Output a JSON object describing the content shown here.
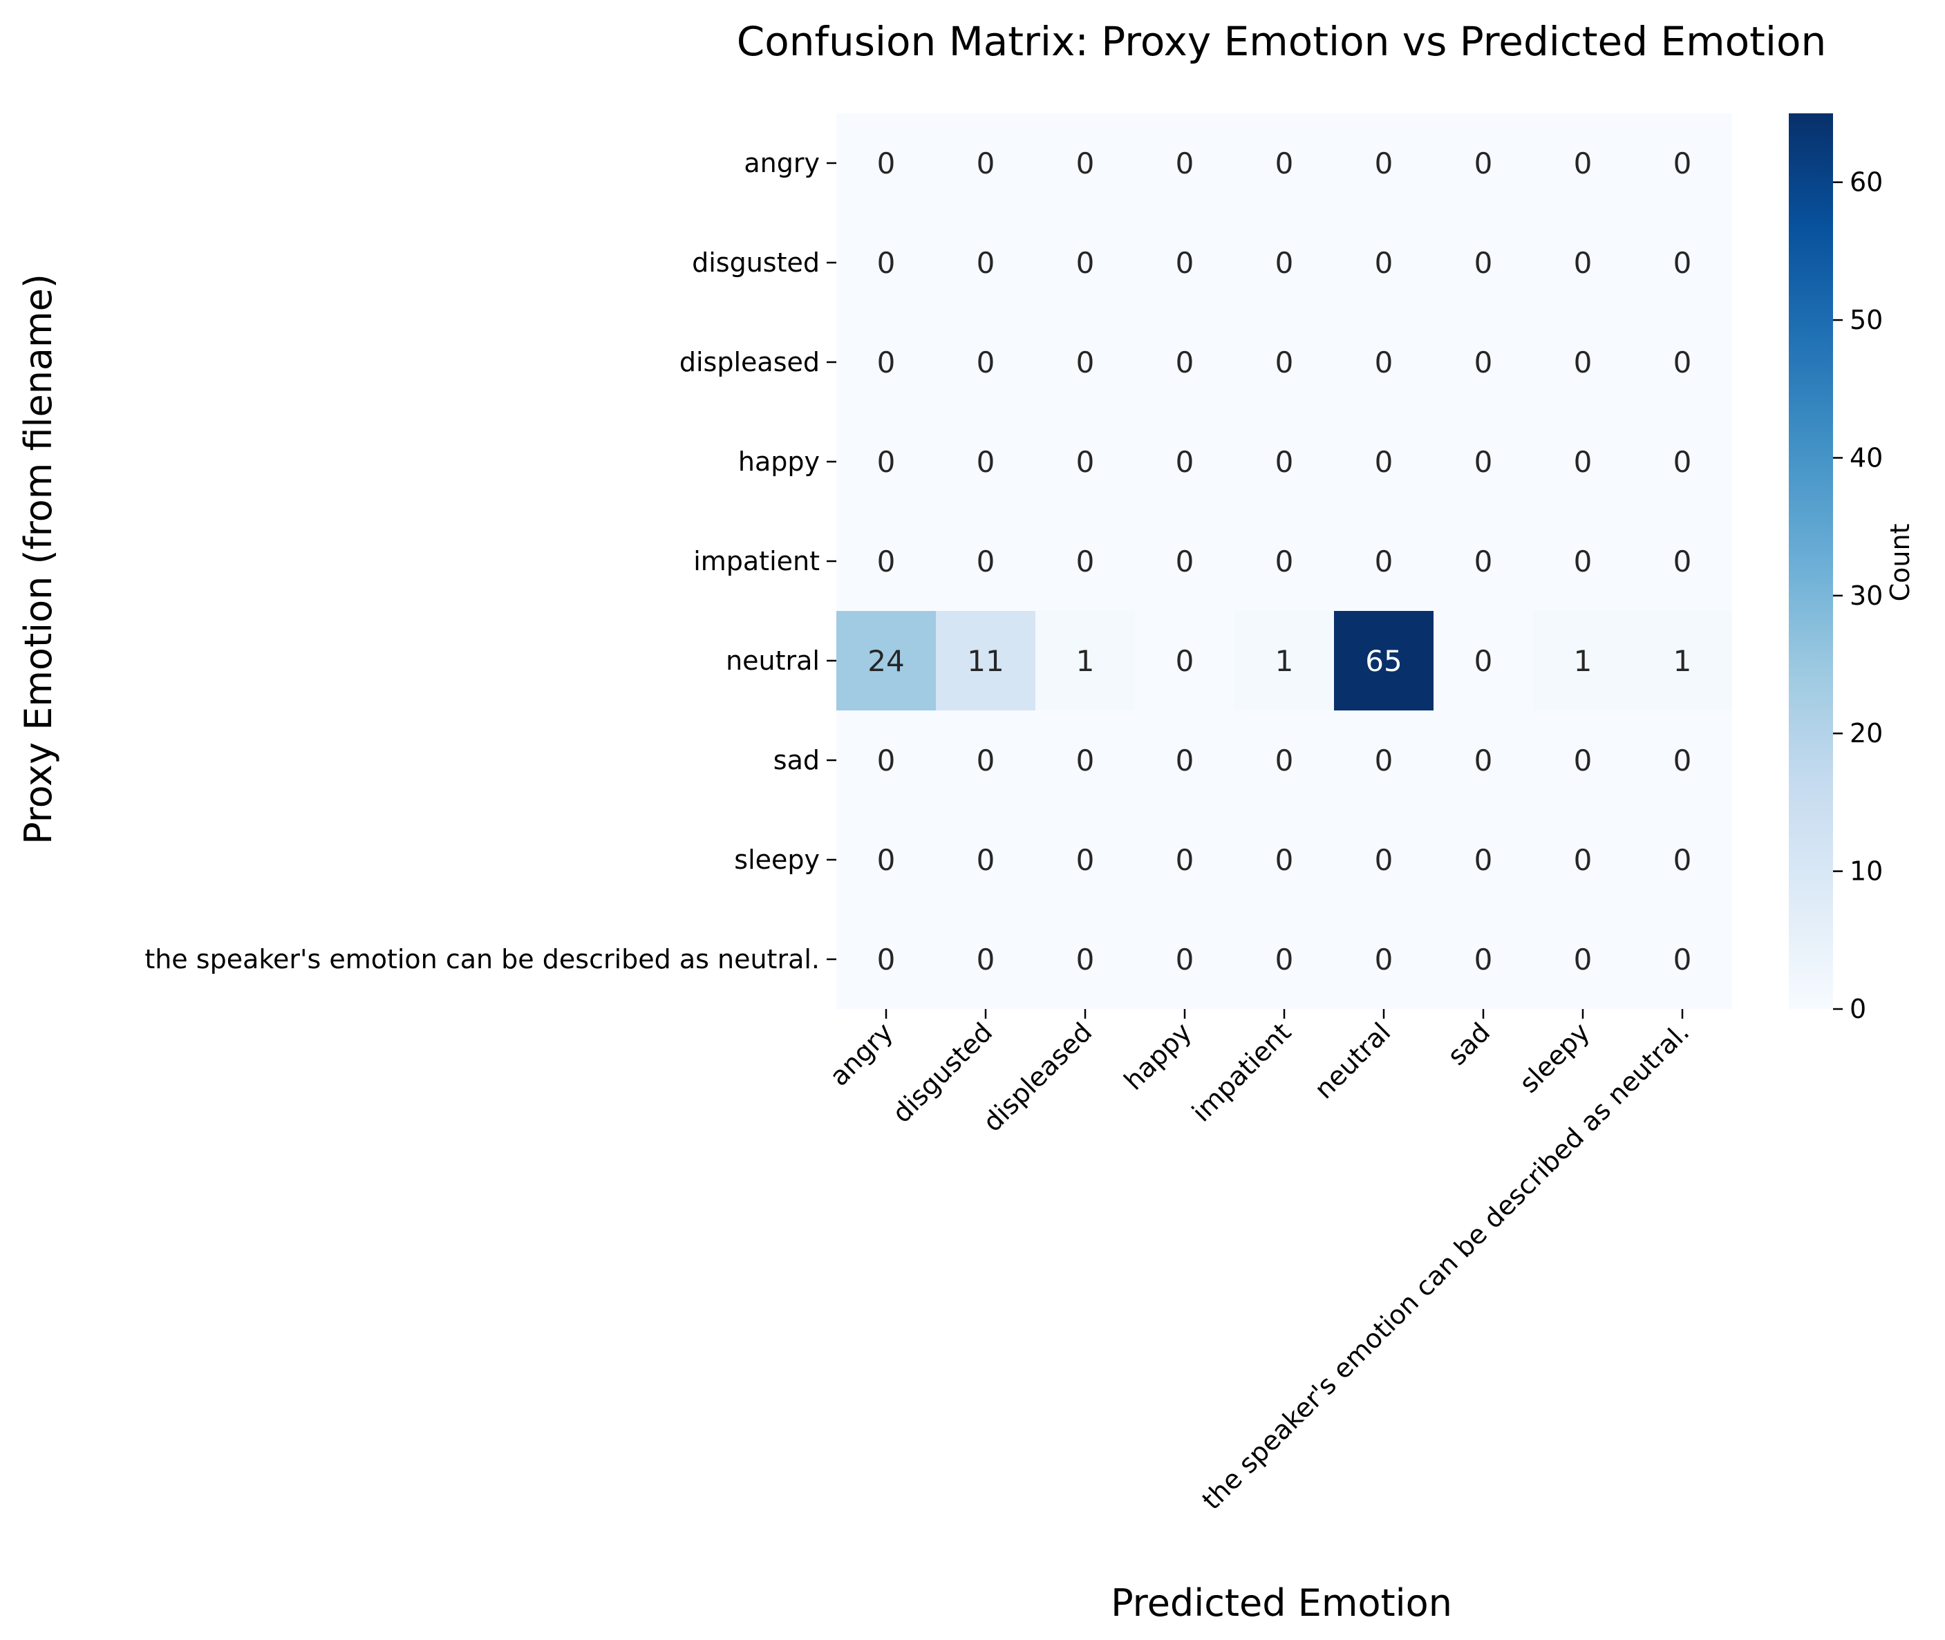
{
  "chart_data": {
    "type": "heatmap",
    "title": "Confusion Matrix: Proxy Emotion vs Predicted Emotion",
    "xlabel": "Predicted Emotion",
    "ylabel": "Proxy Emotion (from filename)",
    "x_categories": [
      "angry",
      "disgusted",
      "displeased",
      "happy",
      "impatient",
      "neutral",
      "sad",
      "sleepy",
      "the speaker's emotion can be described as neutral."
    ],
    "y_categories": [
      "angry",
      "disgusted",
      "displeased",
      "happy",
      "impatient",
      "neutral",
      "sad",
      "sleepy",
      "the speaker's emotion can be described as neutral."
    ],
    "values": [
      [
        0,
        0,
        0,
        0,
        0,
        0,
        0,
        0,
        0
      ],
      [
        0,
        0,
        0,
        0,
        0,
        0,
        0,
        0,
        0
      ],
      [
        0,
        0,
        0,
        0,
        0,
        0,
        0,
        0,
        0
      ],
      [
        0,
        0,
        0,
        0,
        0,
        0,
        0,
        0,
        0
      ],
      [
        0,
        0,
        0,
        0,
        0,
        0,
        0,
        0,
        0
      ],
      [
        24,
        11,
        1,
        0,
        1,
        65,
        0,
        1,
        1
      ],
      [
        0,
        0,
        0,
        0,
        0,
        0,
        0,
        0,
        0
      ],
      [
        0,
        0,
        0,
        0,
        0,
        0,
        0,
        0,
        0
      ],
      [
        0,
        0,
        0,
        0,
        0,
        0,
        0,
        0,
        0
      ]
    ],
    "colormap": "Blues",
    "colorbar": {
      "label": "Count",
      "range": [
        0,
        65
      ],
      "ticks": [
        0,
        10,
        20,
        30,
        40,
        50,
        60
      ]
    },
    "annotated": true,
    "grid": false
  }
}
